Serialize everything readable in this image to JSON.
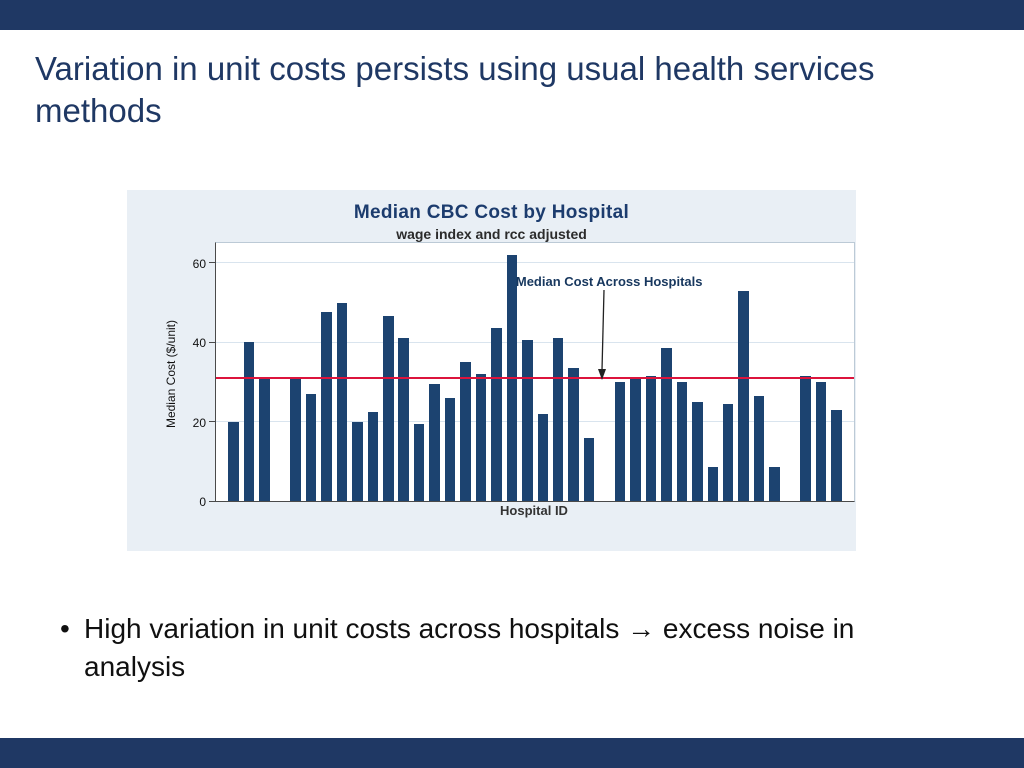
{
  "slide": {
    "title": "Variation in unit costs persists using usual health services methods",
    "bullet_marker": "•",
    "bullet": "High variation in unit costs across hospitals → excess noise in analysis",
    "accent_color": "#1f3864"
  },
  "chart_data": {
    "type": "bar",
    "title": "Median CBC Cost by Hospital",
    "subtitle": "wage index and rcc adjusted",
    "ylabel": "Median Cost ($/unit)",
    "xlabel": "Hospital ID",
    "annotation": "Median Cost Across Hospitals",
    "reference_line_value": 31,
    "reference_line_color": "#dc143c",
    "bar_color": "#1c4370",
    "ylim": [
      0,
      65
    ],
    "yticks": [
      0,
      20,
      40,
      60
    ],
    "grid": "horizontal",
    "legend": "none",
    "values": [
      20,
      40,
      31,
      null,
      31,
      27,
      47.5,
      50,
      20,
      22.5,
      46.5,
      41,
      19.5,
      29.5,
      26,
      35,
      32,
      43.5,
      62,
      40.5,
      22,
      41,
      33.5,
      16,
      null,
      30,
      31,
      31.5,
      38.5,
      30,
      25,
      8.5,
      24.5,
      53,
      26.5,
      8.5,
      null,
      31.5,
      30,
      23
    ]
  }
}
